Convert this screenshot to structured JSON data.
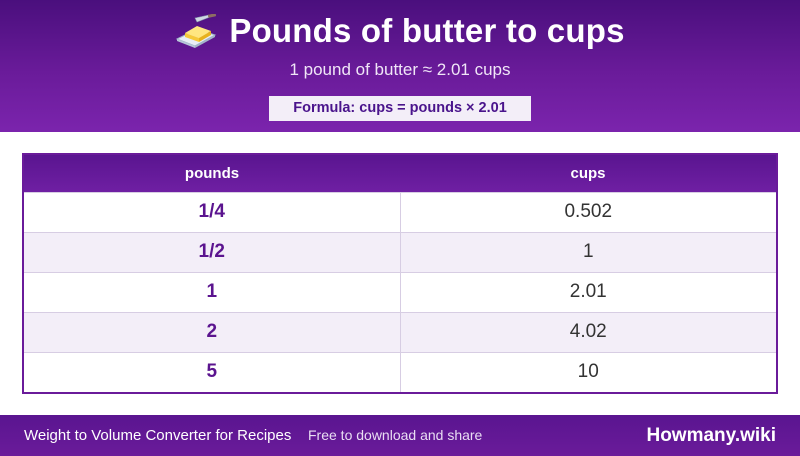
{
  "header": {
    "title": "Pounds of butter to cups",
    "subtitle": "1 pound of butter ≈ 2.01 cups",
    "formula": "Formula: cups = pounds × 2.01",
    "icon": "butter-icon"
  },
  "table": {
    "columns": [
      "pounds",
      "cups"
    ],
    "rows": [
      {
        "pounds": "1/4",
        "cups": "0.502"
      },
      {
        "pounds": "1/2",
        "cups": "1"
      },
      {
        "pounds": "1",
        "cups": "2.01"
      },
      {
        "pounds": "2",
        "cups": "4.02"
      },
      {
        "pounds": "5",
        "cups": "10"
      }
    ]
  },
  "footer": {
    "left": "Weight to Volume Converter for Recipes",
    "middle": "Free to download and share",
    "brand": "Howmany.wiki"
  },
  "colors": {
    "primary": "#6a1b9a",
    "primary_dark": "#4a0f7d",
    "row_alt": "#f3eef8"
  }
}
